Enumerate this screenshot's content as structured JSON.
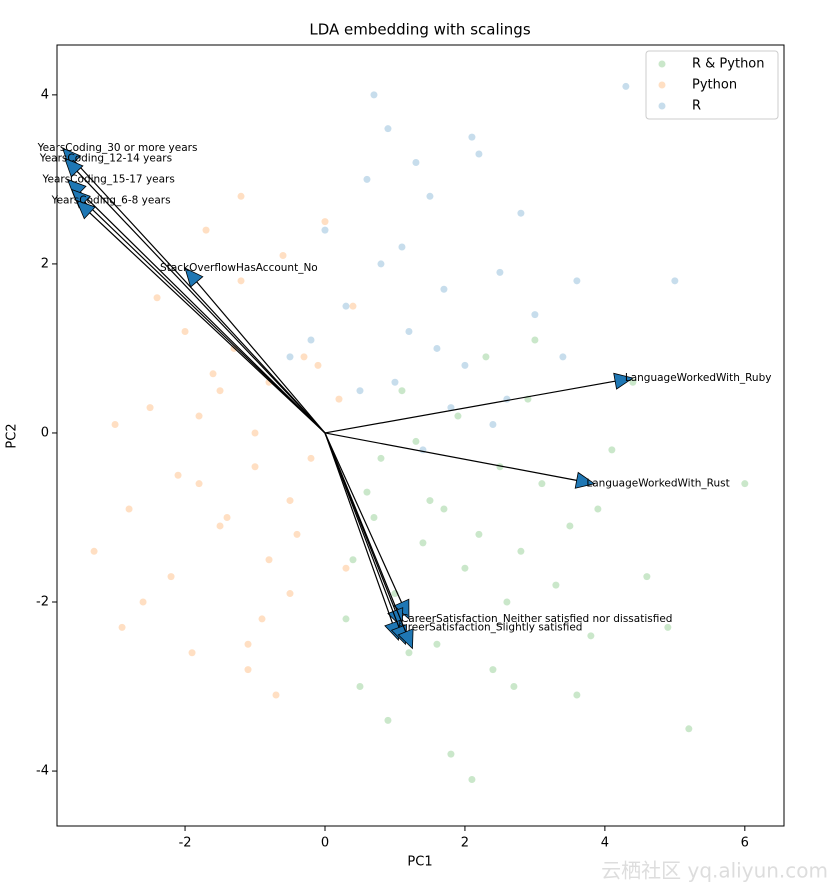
{
  "chart_data": {
    "type": "scatter",
    "title": "LDA embedding with scalings",
    "xlabel": "PC1",
    "ylabel": "PC2",
    "xlim": [
      -3.83,
      6.56
    ],
    "ylim": [
      -4.65,
      4.59
    ],
    "xticks": [
      -2,
      0,
      2,
      4,
      6
    ],
    "yticks": [
      -4,
      -2,
      0,
      2,
      4
    ],
    "legend": "upper right",
    "alpha": 0.25,
    "series": [
      {
        "name": "R & Python",
        "color": "#2ca02c",
        "x": [
          1.5,
          2.2,
          0.8,
          3.1,
          1.9,
          2.6,
          0.4,
          1.2,
          3.5,
          2.9,
          1.7,
          0.9,
          2.4,
          4.1,
          3.3,
          1.1,
          2.0,
          0.6,
          2.7,
          3.8,
          1.4,
          5.2,
          4.6,
          2.3,
          1.8,
          0.3,
          3.0,
          2.5,
          1.0,
          4.4,
          6.0,
          3.6,
          2.1,
          1.6,
          0.7,
          2.8,
          3.9,
          1.3,
          4.9,
          0.5
        ],
        "y": [
          -0.8,
          -1.2,
          -0.3,
          -0.6,
          0.2,
          -2.0,
          -1.5,
          -2.6,
          -1.1,
          0.4,
          -0.9,
          -3.4,
          -2.8,
          -0.2,
          -1.8,
          0.5,
          -1.6,
          -0.7,
          -3.0,
          -2.4,
          -1.3,
          -3.5,
          -1.7,
          0.9,
          -3.8,
          -2.2,
          1.1,
          -0.4,
          -1.9,
          0.6,
          -0.6,
          -3.1,
          -4.1,
          -2.5,
          -1.0,
          -1.4,
          -0.9,
          -0.1,
          -2.3,
          -3.0
        ]
      },
      {
        "name": "Python",
        "color": "#ff7f0e",
        "x": [
          -1.0,
          -1.5,
          -0.5,
          -2.0,
          -0.8,
          -1.2,
          -2.5,
          -0.3,
          -1.8,
          -0.9,
          0.2,
          -1.4,
          -2.8,
          -0.6,
          -1.1,
          -2.2,
          -0.2,
          -1.7,
          -3.0,
          -0.7,
          -1.3,
          -2.6,
          0.4,
          -1.9,
          -0.4,
          -1.6,
          -2.4,
          -1.0,
          0.0,
          -3.3,
          -0.5,
          -1.2,
          -2.1,
          -0.8,
          -1.5,
          0.3,
          -2.9,
          -1.8,
          -0.1,
          -1.1
        ],
        "y": [
          0.0,
          0.5,
          -0.8,
          1.2,
          -1.5,
          1.8,
          0.3,
          0.9,
          -0.6,
          -2.2,
          0.4,
          -1.0,
          -0.9,
          2.1,
          -2.8,
          -1.7,
          -0.3,
          2.4,
          0.1,
          -3.1,
          1.0,
          -2.0,
          1.5,
          -2.6,
          -1.2,
          0.7,
          1.6,
          -0.4,
          2.5,
          -1.4,
          -1.9,
          2.8,
          -0.5,
          0.6,
          -1.1,
          -1.6,
          -2.3,
          0.2,
          0.8,
          -2.5
        ]
      },
      {
        "name": "R",
        "color": "#1f77b4",
        "x": [
          1.2,
          0.8,
          2.0,
          1.5,
          0.3,
          2.5,
          1.8,
          0.6,
          3.0,
          1.0,
          2.2,
          0.0,
          1.4,
          2.8,
          3.4,
          0.9,
          1.7,
          4.3,
          2.4,
          -0.2,
          1.1,
          3.6,
          0.5,
          2.1,
          1.6,
          5.0,
          -0.5,
          2.6,
          1.3,
          0.7
        ],
        "y": [
          1.2,
          2.0,
          0.8,
          2.8,
          1.5,
          1.9,
          0.3,
          3.0,
          1.4,
          0.6,
          3.3,
          2.4,
          -0.2,
          2.6,
          0.9,
          3.6,
          1.7,
          4.1,
          0.1,
          1.1,
          2.2,
          1.8,
          0.5,
          3.5,
          1.0,
          1.8,
          0.9,
          0.4,
          3.2,
          4.0
        ]
      }
    ],
    "arrow_color": "#1f77b4",
    "arrows": [
      {
        "label": "YearsCoding_30 or more years",
        "x": -3.75,
        "y": 3.37
      },
      {
        "label": "YearsCoding_12-14 years",
        "x": -3.72,
        "y": 3.25
      },
      {
        "label": "YearsCoding_15-17 years",
        "x": -3.68,
        "y": 3.0
      },
      {
        "label": null,
        "x": -3.62,
        "y": 2.88
      },
      {
        "label": "YearsCoding_6-8 years",
        "x": -3.55,
        "y": 2.75
      },
      {
        "label": "StackOverflowHasAccount_No",
        "x": -2.0,
        "y": 1.95
      },
      {
        "label": "LanguageWorkedWith_Ruby",
        "x": 4.4,
        "y": 0.65
      },
      {
        "label": "LanguageWorkedWith_Rust",
        "x": 3.85,
        "y": -0.6
      },
      {
        "label": "CareerSatisfaction_Neither satisfied nor dissatisfied",
        "x": 1.2,
        "y": -2.2
      },
      {
        "label": "CareerSatisfaction_Slightly satisfied",
        "x": 1.1,
        "y": -2.3
      },
      {
        "label": null,
        "x": 1.05,
        "y": -2.45
      },
      {
        "label": null,
        "x": 1.15,
        "y": -2.5
      },
      {
        "label": null,
        "x": 1.25,
        "y": -2.55
      }
    ],
    "watermark": "云栖社区 yq.aliyun.com"
  }
}
